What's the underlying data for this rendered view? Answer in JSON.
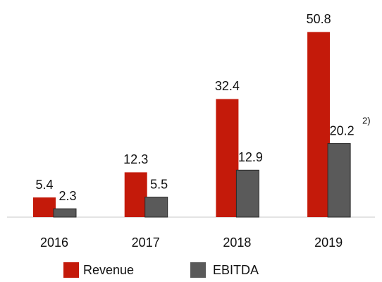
{
  "chart_data": {
    "type": "bar",
    "categories": [
      "2016",
      "2017",
      "2018",
      "2019"
    ],
    "series": [
      {
        "name": "Revenue",
        "color": "#c41a0a",
        "values": [
          5.4,
          12.3,
          32.4,
          50.8
        ]
      },
      {
        "name": "EBITDA",
        "color": "#5a5a5a",
        "values": [
          2.3,
          5.5,
          12.9,
          20.2
        ]
      }
    ],
    "annotations": [
      "2)"
    ]
  }
}
